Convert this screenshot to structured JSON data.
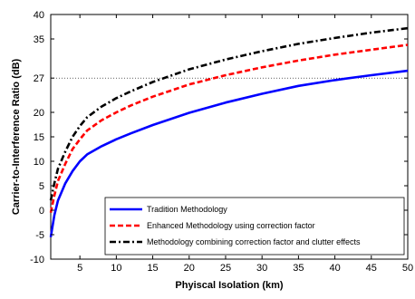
{
  "chart_data": {
    "type": "line",
    "xlabel": "Phyiscal Isolation (km)",
    "ylabel": "Carrier-to-Interference Ratio (dB)",
    "xlim": [
      1,
      50
    ],
    "ylim": [
      -10,
      40
    ],
    "xticks": [
      5,
      10,
      15,
      20,
      25,
      30,
      35,
      40,
      45,
      50
    ],
    "yticks": [
      -10,
      -5,
      0,
      5,
      10,
      15,
      20,
      27,
      35,
      40
    ],
    "grid": false,
    "legend_position": "bottom-right",
    "reference_line": {
      "y": 27,
      "style": "dotted"
    },
    "x": [
      1,
      1.5,
      2,
      3,
      4,
      5,
      6,
      8,
      10,
      12,
      15,
      20,
      25,
      30,
      35,
      40,
      45,
      50
    ],
    "series": [
      {
        "name": "Tradition Methodology",
        "color": "#0000ff",
        "dash": "solid",
        "values": [
          -5.5,
          -1.0,
          2.0,
          5.5,
          8.0,
          10.0,
          11.4,
          13.1,
          14.5,
          15.7,
          17.4,
          19.9,
          22.0,
          23.8,
          25.4,
          26.6,
          27.6,
          28.5
        ]
      },
      {
        "name": "Enhanced Methodology using correction factor",
        "color": "#ff0000",
        "dash": "dashed",
        "values": [
          -0.5,
          3.0,
          6.0,
          9.5,
          12.5,
          14.5,
          16.3,
          18.4,
          20.0,
          21.4,
          23.2,
          25.7,
          27.6,
          29.2,
          30.6,
          31.8,
          32.8,
          33.8
        ]
      },
      {
        "name": "Methodology combining correction factor and clutter effects",
        "color": "#000000",
        "dash": "dashdot",
        "values": [
          2.0,
          5.5,
          8.5,
          12.0,
          15.0,
          17.2,
          19.0,
          21.2,
          22.9,
          24.3,
          26.2,
          28.8,
          30.8,
          32.5,
          34.0,
          35.2,
          36.3,
          37.2
        ]
      }
    ]
  }
}
